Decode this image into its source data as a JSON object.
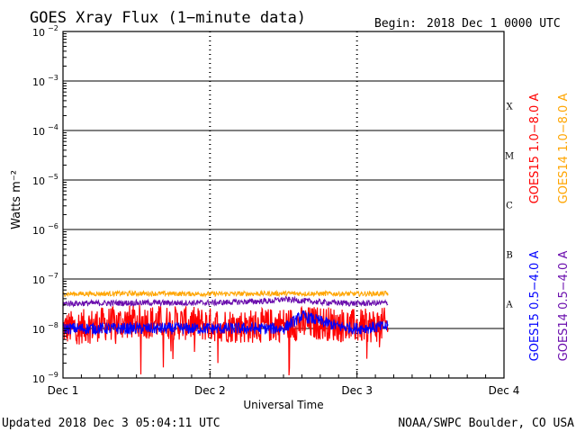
{
  "chart_data": {
    "type": "line",
    "title": "GOES Xray Flux (1−minute data)",
    "begin_label": "Begin:",
    "begin_value": "2018 Dec 1 0000 UTC",
    "xlabel": "Universal Time",
    "ylabel": "Watts m⁻²",
    "yscale": "log",
    "ylim": [
      1e-09,
      0.01
    ],
    "y_ticks": [
      {
        "mantissa": "10",
        "exp": "−9"
      },
      {
        "mantissa": "10",
        "exp": "−8"
      },
      {
        "mantissa": "10",
        "exp": "−7"
      },
      {
        "mantissa": "10",
        "exp": "−6"
      },
      {
        "mantissa": "10",
        "exp": "−5"
      },
      {
        "mantissa": "10",
        "exp": "−4"
      },
      {
        "mantissa": "10",
        "exp": "−3"
      },
      {
        "mantissa": "10",
        "exp": "−2"
      }
    ],
    "x_ticks": [
      "Dec 1",
      "Dec 2",
      "Dec 3",
      "Dec 4"
    ],
    "xlim_days": [
      0,
      3
    ],
    "flare_classes": [
      {
        "label": "A",
        "level": 1e-08
      },
      {
        "label": "B",
        "level": 1e-07
      },
      {
        "label": "C",
        "level": 1e-06
      },
      {
        "label": "M",
        "level": 1e-05
      },
      {
        "label": "X",
        "level": 0.0001
      }
    ],
    "grid": true,
    "series": [
      {
        "name": "GOES15 1.0−8.0 A",
        "color": "#ff0000",
        "x": [
          "Dec 1 00:00",
          "Dec 1 06:00",
          "Dec 1 12:00",
          "Dec 1 18:00",
          "Dec 2 00:00",
          "Dec 2 06:00",
          "Dec 2 12:00",
          "Dec 2 18:00",
          "Dec 3 00:00",
          "Dec 3 05:04"
        ],
        "values": [
          1e-08,
          1.2e-08,
          1.4e-08,
          1.3e-08,
          1.2e-08,
          1.1e-08,
          1.2e-08,
          1.3e-08,
          1.1e-08,
          1.2e-08
        ]
      },
      {
        "name": "GOES14 1.0−8.0 A",
        "color": "#ffa500",
        "x": [
          "Dec 1 00:00",
          "Dec 1 12:00",
          "Dec 2 00:00",
          "Dec 2 12:00",
          "Dec 3 00:00",
          "Dec 3 05:04"
        ],
        "values": [
          5e-08,
          5.1e-08,
          5e-08,
          5.1e-08,
          5e-08,
          5.1e-08
        ]
      },
      {
        "name": "GOES15 0.5−4.0 A",
        "color": "#0000ff",
        "x": [
          "Dec 1 00:00",
          "Dec 1 12:00",
          "Dec 2 00:00",
          "Dec 2 12:00",
          "Dec 2 15:00",
          "Dec 2 21:00",
          "Dec 3 00:00",
          "Dec 3 05:04"
        ],
        "values": [
          1e-08,
          1e-08,
          1e-08,
          1e-08,
          1.8e-08,
          1.1e-08,
          1e-08,
          1.1e-08
        ]
      },
      {
        "name": "GOES14 0.5−4.0 A",
        "color": "#6a0dad",
        "x": [
          "Dec 1 00:00",
          "Dec 1 12:00",
          "Dec 2 00:00",
          "Dec 2 10:00",
          "Dec 2 12:00",
          "Dec 2 18:00",
          "Dec 3 00:00",
          "Dec 3 05:04"
        ],
        "values": [
          3.2e-08,
          3.3e-08,
          3.3e-08,
          3.6e-08,
          3.9e-08,
          3.4e-08,
          3.2e-08,
          3.3e-08
        ]
      }
    ]
  },
  "footer": {
    "updated": "Updated 2018 Dec  3 05:04:11 UTC",
    "source": "NOAA/SWPC Boulder, CO USA"
  },
  "colors": {
    "grid": "#000000",
    "background": "#ffffff"
  }
}
